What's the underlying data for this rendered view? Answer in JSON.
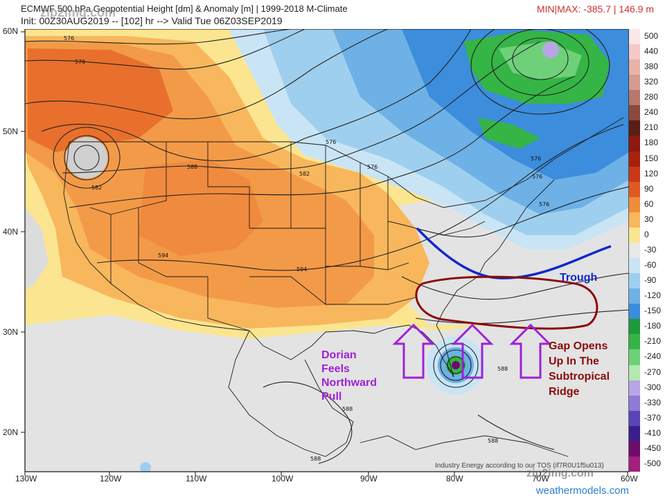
{
  "header": {
    "title": "ECMWF 500 hPa Geopotential Height [dm] & Anomaly [m] | 1999-2018 M-Climate",
    "subtitle": "Init: 00Z30AUG2019 -- [102] hr --> Valid Tue 06Z03SEP2019",
    "minmax": "MIN|MAX: -385.7 | 146.9 m",
    "watermark": "zip2img.com"
  },
  "axes": {
    "lat_labels": [
      "60N",
      "50N",
      "40N",
      "30N",
      "20N"
    ],
    "lon_labels": [
      "130W",
      "120W",
      "110W",
      "100W",
      "90W",
      "80W",
      "70W",
      "60W"
    ]
  },
  "colorbar": {
    "labels": [
      "500",
      "440",
      "380",
      "320",
      "280",
      "240",
      "210",
      "180",
      "150",
      "120",
      "90",
      "60",
      "30",
      "0",
      "-30",
      "-60",
      "-90",
      "-120",
      "-150",
      "-180",
      "-210",
      "-240",
      "-270",
      "-300",
      "-330",
      "-370",
      "-410",
      "-450",
      "-500"
    ],
    "colors": [
      "#fbe6e8",
      "#f4c9c8",
      "#e8b2a8",
      "#d49c90",
      "#b9776b",
      "#8a4a3e",
      "#5a1e18",
      "#8b1a10",
      "#a8200e",
      "#c8391a",
      "#df5a22",
      "#ef8c3c",
      "#f8b75c",
      "#fbe590",
      "#e8e8e8",
      "#c9e4f5",
      "#9fcfee",
      "#6db1e6",
      "#3c8ddc",
      "#1d9b3c",
      "#35b545",
      "#6fd07a",
      "#b3e8b3",
      "#b8a6e4",
      "#8f7ad4",
      "#5b44b8",
      "#3a1f8c",
      "#6e0c6a",
      "#a2207c",
      "#d060a8",
      "#f0a0d0"
    ]
  },
  "contour_labels": [
    "576",
    "576",
    "582",
    "588",
    "582",
    "576",
    "594",
    "594",
    "588",
    "588",
    "588",
    "576",
    "576",
    "576",
    "576",
    "588"
  ],
  "annotations": {
    "trough": "Trough",
    "dorian": [
      "Dorian",
      "Feels",
      "Northward",
      "Pull"
    ],
    "gap": [
      "Gap Opens",
      "Up In The",
      "Subtropical",
      "Ridge"
    ],
    "trough_color": "#1028c8",
    "ridge_color": "#8b0a0a",
    "arrow_color": "#a020d8"
  },
  "footer": {
    "tos": "Industry Energy according to our TOS (if7R0U1f5u013)",
    "brand": "weathermodels.com",
    "watermark2": "zip2img.com"
  }
}
